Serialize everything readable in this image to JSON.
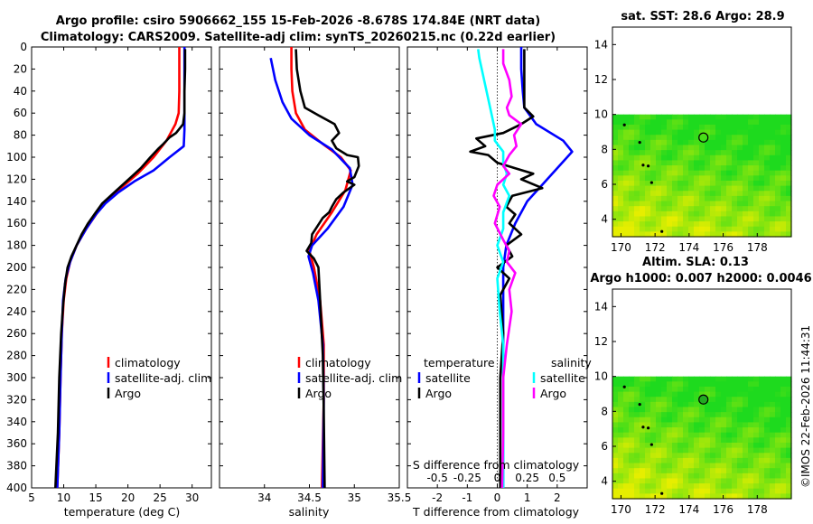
{
  "title": {
    "line1": "Argo profile: csiro 5906662_155 15-Feb-2026 -8.678S 174.84E (NRT data)",
    "line2": "Climatology: CARS2009. Satellite-adj clim: synTS_20260215.nc (0.22d earlier)"
  },
  "timestamp": "©IMOS 22-Feb-2026 11:44:31",
  "colors": {
    "clim": "#ff0000",
    "sat": "#0000ff",
    "argo": "#000000",
    "cyan": "#00ffff",
    "magenta": "#ff00ff",
    "map_green": "#22dd22",
    "map_yellow": "#e8f000"
  },
  "chart_data": [
    {
      "type": "line",
      "id": "temperature",
      "xlabel": "temperature (deg C)",
      "ylabel": "",
      "xlim": [
        5,
        33
      ],
      "ylim": [
        400,
        0
      ],
      "xticks": [
        "5",
        "10",
        "15",
        "20",
        "25",
        "30"
      ],
      "yticks": [
        "0",
        "20",
        "40",
        "60",
        "80",
        "100",
        "120",
        "140",
        "160",
        "180",
        "200",
        "220",
        "240",
        "260",
        "280",
        "300",
        "320",
        "340",
        "360",
        "380",
        "400"
      ],
      "legend": [
        "climatology",
        "satellite-adj. clim",
        "Argo"
      ],
      "series": [
        {
          "name": "climatology",
          "color": "red",
          "points": [
            [
              28.0,
              0
            ],
            [
              28.0,
              20
            ],
            [
              28.0,
              40
            ],
            [
              27.9,
              60
            ],
            [
              27.4,
              70
            ],
            [
              26.0,
              85
            ],
            [
              24.0,
              100
            ],
            [
              21.5,
              115
            ],
            [
              19.5,
              125
            ],
            [
              17.5,
              135
            ],
            [
              15.5,
              148
            ],
            [
              13.5,
              165
            ],
            [
              12.0,
              180
            ],
            [
              11.0,
              195
            ],
            [
              10.4,
              210
            ],
            [
              10.0,
              230
            ],
            [
              9.7,
              260
            ],
            [
              9.5,
              300
            ],
            [
              9.3,
              350
            ],
            [
              9.0,
              400
            ]
          ]
        },
        {
          "name": "satellite-adj. clim",
          "color": "blue",
          "points": [
            [
              28.8,
              0
            ],
            [
              28.8,
              20
            ],
            [
              28.8,
              40
            ],
            [
              28.8,
              60
            ],
            [
              28.8,
              75
            ],
            [
              28.7,
              90
            ],
            [
              26.5,
              100
            ],
            [
              24.0,
              112
            ],
            [
              21.0,
              122
            ],
            [
              18.5,
              132
            ],
            [
              16.5,
              142
            ],
            [
              15.0,
              152
            ],
            [
              13.5,
              165
            ],
            [
              12.0,
              180
            ],
            [
              11.0,
              195
            ],
            [
              10.3,
              210
            ],
            [
              9.9,
              230
            ],
            [
              9.7,
              260
            ],
            [
              9.5,
              300
            ],
            [
              9.3,
              350
            ],
            [
              9.0,
              400
            ]
          ]
        },
        {
          "name": "Argo",
          "color": "black",
          "points": [
            [
              28.9,
              2
            ],
            [
              28.9,
              20
            ],
            [
              28.8,
              40
            ],
            [
              28.8,
              60
            ],
            [
              28.6,
              70
            ],
            [
              27.5,
              78
            ],
            [
              26.5,
              82
            ],
            [
              25.5,
              88
            ],
            [
              24.8,
              92
            ],
            [
              23.5,
              100
            ],
            [
              22.0,
              110
            ],
            [
              20.5,
              118
            ],
            [
              19.0,
              126
            ],
            [
              17.5,
              134
            ],
            [
              16.0,
              142
            ],
            [
              15.0,
              150
            ],
            [
              13.8,
              160
            ],
            [
              12.8,
              170
            ],
            [
              12.0,
              180
            ],
            [
              11.2,
              190
            ],
            [
              10.6,
              200
            ],
            [
              10.2,
              215
            ],
            [
              9.9,
              235
            ],
            [
              9.6,
              260
            ],
            [
              9.3,
              300
            ],
            [
              9.1,
              350
            ],
            [
              8.7,
              400
            ]
          ]
        }
      ]
    },
    {
      "type": "line",
      "id": "salinity",
      "xlabel": "salinity",
      "xlim": [
        33.5,
        35.5
      ],
      "ylim": [
        400,
        0
      ],
      "xticks": [
        "34",
        "34.5",
        "35",
        "35.5"
      ],
      "legend": [
        "climatology",
        "satellite-adj. clim",
        "Argo"
      ],
      "series": [
        {
          "name": "climatology",
          "color": "red",
          "points": [
            [
              34.3,
              0
            ],
            [
              34.3,
              20
            ],
            [
              34.31,
              40
            ],
            [
              34.35,
              60
            ],
            [
              34.45,
              75
            ],
            [
              34.65,
              88
            ],
            [
              34.85,
              100
            ],
            [
              34.96,
              112
            ],
            [
              34.9,
              130
            ],
            [
              34.75,
              150
            ],
            [
              34.58,
              170
            ],
            [
              34.5,
              185
            ],
            [
              34.55,
              200
            ],
            [
              34.62,
              230
            ],
            [
              34.66,
              270
            ],
            [
              34.66,
              320
            ],
            [
              34.64,
              400
            ]
          ]
        },
        {
          "name": "satellite-adj. clim",
          "color": "blue",
          "points": [
            [
              34.07,
              10
            ],
            [
              34.12,
              30
            ],
            [
              34.2,
              50
            ],
            [
              34.3,
              65
            ],
            [
              34.5,
              80
            ],
            [
              34.75,
              93
            ],
            [
              34.95,
              110
            ],
            [
              34.98,
              125
            ],
            [
              34.88,
              145
            ],
            [
              34.7,
              165
            ],
            [
              34.53,
              180
            ],
            [
              34.49,
              190
            ],
            [
              34.54,
              205
            ],
            [
              34.6,
              230
            ],
            [
              34.65,
              270
            ],
            [
              34.66,
              320
            ],
            [
              34.65,
              400
            ]
          ]
        },
        {
          "name": "Argo",
          "color": "black",
          "points": [
            [
              34.35,
              2
            ],
            [
              34.36,
              20
            ],
            [
              34.4,
              40
            ],
            [
              34.45,
              55
            ],
            [
              34.6,
              62
            ],
            [
              34.78,
              70
            ],
            [
              34.83,
              78
            ],
            [
              34.75,
              85
            ],
            [
              34.8,
              92
            ],
            [
              34.92,
              98
            ],
            [
              35.04,
              100
            ],
            [
              35.05,
              108
            ],
            [
              35.0,
              118
            ],
            [
              34.92,
              122
            ],
            [
              35.0,
              125
            ],
            [
              34.88,
              132
            ],
            [
              34.8,
              138
            ],
            [
              34.75,
              145
            ],
            [
              34.72,
              150
            ],
            [
              34.65,
              155
            ],
            [
              34.57,
              165
            ],
            [
              34.53,
              170
            ],
            [
              34.52,
              178
            ],
            [
              34.47,
              185
            ],
            [
              34.55,
              192
            ],
            [
              34.6,
              200
            ],
            [
              34.62,
              230
            ],
            [
              34.65,
              280
            ],
            [
              34.66,
              330
            ],
            [
              34.67,
              400
            ]
          ]
        }
      ]
    },
    {
      "type": "line",
      "id": "difference",
      "xlabel": "T difference from climatology",
      "xlabel2": "S difference from climatology",
      "xlim": [
        -3,
        3
      ],
      "ylim": [
        400,
        0
      ],
      "xticks": [
        "-2",
        "-1",
        "0",
        "1",
        "2"
      ],
      "xticks2": [
        "-0.5",
        "-0.25",
        "0",
        "0.25",
        "0.5"
      ],
      "legend_temperature": [
        "temperature",
        "satellite",
        "Argo"
      ],
      "legend_salinity": [
        "salinity",
        "satellite",
        "Argo"
      ],
      "series": [
        {
          "name": "T satellite",
          "color": "blue",
          "points": [
            [
              0.8,
              0
            ],
            [
              0.8,
              20
            ],
            [
              0.85,
              40
            ],
            [
              0.9,
              55
            ],
            [
              1.3,
              70
            ],
            [
              2.2,
              85
            ],
            [
              2.5,
              95
            ],
            [
              2.0,
              110
            ],
            [
              1.5,
              125
            ],
            [
              1.0,
              140
            ],
            [
              0.6,
              160
            ],
            [
              0.3,
              180
            ],
            [
              0.2,
              200
            ],
            [
              0.2,
              230
            ],
            [
              0.2,
              300
            ],
            [
              0.2,
              400
            ]
          ]
        },
        {
          "name": "T Argo",
          "color": "black",
          "points": [
            [
              0.9,
              2
            ],
            [
              0.9,
              30
            ],
            [
              0.9,
              55
            ],
            [
              1.2,
              63
            ],
            [
              0.8,
              70
            ],
            [
              0.2,
              78
            ],
            [
              -0.7,
              83
            ],
            [
              -0.4,
              90
            ],
            [
              -0.9,
              95
            ],
            [
              -0.3,
              98
            ],
            [
              0.0,
              105
            ],
            [
              0.6,
              110
            ],
            [
              1.2,
              115
            ],
            [
              0.8,
              120
            ],
            [
              1.5,
              128
            ],
            [
              0.5,
              135
            ],
            [
              0.3,
              145
            ],
            [
              0.6,
              152
            ],
            [
              0.4,
              160
            ],
            [
              0.8,
              170
            ],
            [
              0.3,
              180
            ],
            [
              0.5,
              190
            ],
            [
              0.0,
              200
            ],
            [
              0.4,
              210
            ],
            [
              0.1,
              225
            ],
            [
              0.2,
              260
            ],
            [
              0.1,
              300
            ],
            [
              0.1,
              400
            ]
          ]
        },
        {
          "name": "S satellite",
          "color": "cyan",
          "points": [
            [
              -0.16,
              2
            ],
            [
              -0.15,
              10
            ],
            [
              -0.12,
              25
            ],
            [
              -0.08,
              45
            ],
            [
              -0.05,
              60
            ],
            [
              -0.02,
              75
            ],
            [
              -0.02,
              85
            ],
            [
              0.05,
              95
            ],
            [
              0.05,
              105
            ],
            [
              0.08,
              115
            ],
            [
              0.05,
              125
            ],
            [
              0.1,
              135
            ],
            [
              0.05,
              150
            ],
            [
              0.05,
              165
            ],
            [
              0.0,
              180
            ],
            [
              0.05,
              195
            ],
            [
              0.0,
              210
            ],
            [
              0.02,
              240
            ],
            [
              0.05,
              270
            ],
            [
              0.05,
              330
            ],
            [
              0.05,
              400
            ]
          ]
        },
        {
          "name": "S Argo",
          "color": "magenta",
          "points": [
            [
              0.05,
              2
            ],
            [
              0.05,
              15
            ],
            [
              0.1,
              30
            ],
            [
              0.12,
              45
            ],
            [
              0.08,
              55
            ],
            [
              0.1,
              62
            ],
            [
              0.2,
              70
            ],
            [
              0.14,
              80
            ],
            [
              0.16,
              90
            ],
            [
              0.1,
              98
            ],
            [
              0.05,
              108
            ],
            [
              0.1,
              115
            ],
            [
              0.0,
              125
            ],
            [
              -0.03,
              135
            ],
            [
              0.02,
              145
            ],
            [
              -0.02,
              160
            ],
            [
              0.05,
              175
            ],
            [
              0.1,
              185
            ],
            [
              0.08,
              195
            ],
            [
              0.15,
              205
            ],
            [
              0.1,
              220
            ],
            [
              0.12,
              240
            ],
            [
              0.08,
              270
            ],
            [
              0.05,
              300
            ],
            [
              0.05,
              350
            ],
            [
              0.04,
              400
            ]
          ]
        }
      ]
    },
    {
      "type": "heatmap",
      "id": "sst_map",
      "title": "sat. SST: 28.6 Argo: 28.9",
      "xlim": [
        169.5,
        180
      ],
      "ylim": [
        3,
        15
      ],
      "xticks": [
        "170",
        "172",
        "174",
        "176",
        "178"
      ],
      "yticks": [
        "4",
        "6",
        "8",
        "10",
        "12",
        "14"
      ],
      "data_extent_y": [
        3,
        10
      ],
      "argo_position": [
        174.84,
        8.678
      ]
    },
    {
      "type": "heatmap",
      "id": "sla_map",
      "title": "Altim. SLA: 0.13",
      "subtitle": "Argo h1000: 0.007 h2000: 0.0046",
      "xlim": [
        169.5,
        180
      ],
      "ylim": [
        3,
        15
      ],
      "xticks": [
        "170",
        "172",
        "174",
        "176",
        "178"
      ],
      "yticks": [
        "4",
        "6",
        "8",
        "10",
        "12",
        "14"
      ],
      "data_extent_y": [
        3,
        10
      ],
      "argo_position": [
        174.84,
        8.678
      ]
    }
  ]
}
